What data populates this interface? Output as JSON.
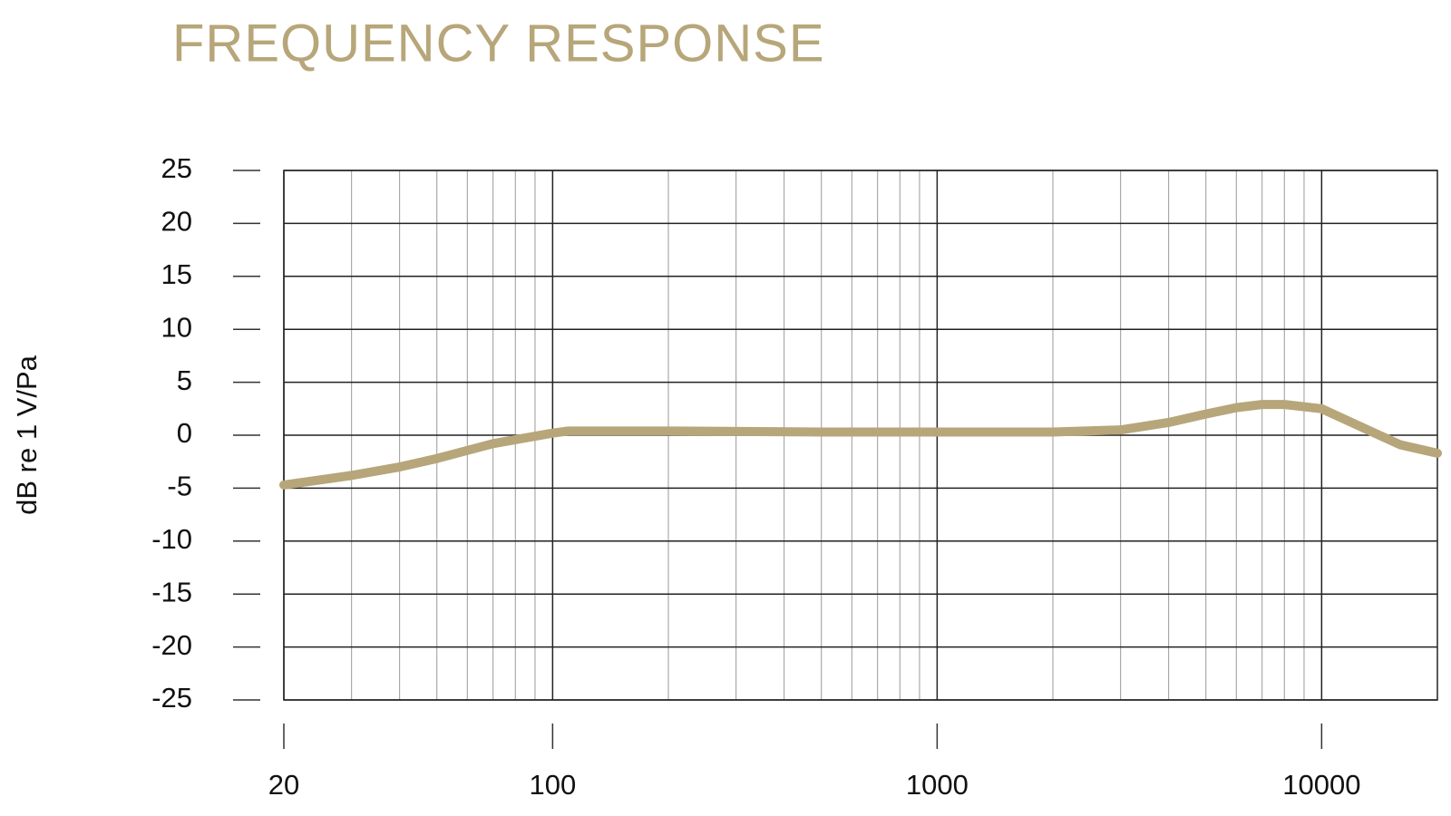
{
  "chart_data": {
    "type": "line",
    "title": "FREQUENCY RESPONSE",
    "y_label": "dB re 1 V/Pa",
    "log_x": true,
    "grid": true,
    "x": [
      20,
      30,
      40,
      50,
      70,
      100,
      110,
      200,
      500,
      1000,
      2000,
      3000,
      4000,
      5000,
      6000,
      7000,
      8000,
      10000,
      13000,
      16000,
      20000
    ],
    "series": [
      {
        "color": "#b7a679",
        "values": [
          -4.7,
          -3.8,
          -3.0,
          -2.2,
          -0.8,
          0.2,
          0.4,
          0.4,
          0.3,
          0.3,
          0.3,
          0.5,
          1.2,
          2.0,
          2.6,
          2.9,
          2.9,
          2.5,
          0.6,
          -0.9,
          -1.7
        ]
      }
    ],
    "xlim": [
      20,
      20000
    ],
    "xticks": [
      20,
      100,
      1000,
      10000
    ],
    "x_minor_grid": [
      30,
      40,
      50,
      60,
      70,
      80,
      90,
      200,
      300,
      400,
      500,
      600,
      700,
      800,
      900,
      2000,
      3000,
      4000,
      5000,
      6000,
      7000,
      8000,
      9000
    ],
    "ylim": [
      -25,
      25
    ],
    "yticks": [
      25,
      20,
      15,
      10,
      5,
      0,
      -5,
      -10,
      -15,
      -20,
      -25
    ]
  }
}
